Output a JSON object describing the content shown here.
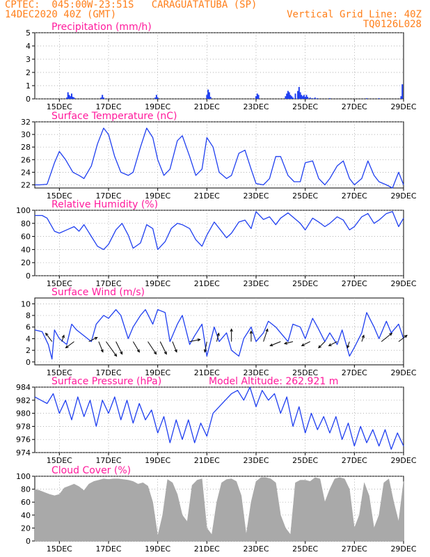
{
  "header": {
    "line1_left": "CPTEC:  045:00W-23:51S   CARAGUATATUBA (SP)",
    "line2_left": "14DEC2020 40Z (GMT)",
    "line2_right": "Vertical Grid Line: 40Z",
    "line3_right": "TQ0126L028"
  },
  "colors": {
    "header": "#ff7f1a",
    "panel_title": "#ff1a9c",
    "series": "#1f3ff0",
    "cloud_fill": "#a9a9a9",
    "grid": "#999999"
  },
  "x_axis": {
    "ticks": [
      "15DEC",
      "17DEC",
      "19DEC",
      "21DEC",
      "23DEC",
      "25DEC",
      "27DEC",
      "29DEC"
    ],
    "tick_days": [
      15,
      17,
      19,
      21,
      23,
      25,
      27,
      29
    ],
    "range_days": [
      14,
      29
    ]
  },
  "chart_data": [
    {
      "type": "bar",
      "title": "Precipitation (mm/h)",
      "ylim": [
        0,
        5
      ],
      "yticks": [
        0,
        1,
        2,
        3,
        4,
        5
      ],
      "grid": true,
      "x": [
        15.3,
        15.35,
        15.4,
        15.45,
        15.5,
        15.55,
        15.6,
        16.7,
        16.75,
        16.8,
        18.9,
        18.95,
        19.0,
        21.0,
        21.05,
        21.1,
        21.15,
        23.0,
        23.05,
        23.1,
        24.2,
        24.25,
        24.3,
        24.35,
        24.4,
        24.45,
        24.5,
        24.6,
        24.7,
        24.75,
        24.8,
        24.85,
        24.9,
        24.95,
        25.0,
        25.05,
        25.1,
        25.2,
        25.3,
        25.4,
        25.5,
        26.0,
        27.5,
        28.0,
        28.9,
        28.95
      ],
      "values": [
        0.1,
        0.5,
        0.3,
        0.2,
        0.4,
        0.15,
        0.1,
        0.1,
        0.3,
        0.1,
        0.1,
        0.3,
        0.1,
        0.3,
        0.7,
        0.5,
        0.15,
        0.2,
        0.4,
        0.3,
        0.2,
        0.4,
        0.6,
        0.5,
        0.3,
        0.2,
        0.1,
        0.4,
        0.6,
        0.9,
        0.5,
        0.3,
        0.2,
        0.3,
        0.15,
        0.3,
        0.15,
        0.1,
        0.05,
        0.1,
        0.05,
        0.05,
        0.05,
        0.05,
        0.2,
        1.1
      ]
    },
    {
      "type": "line",
      "title": "Surface Temperature (nC)",
      "ylim": [
        21.5,
        32
      ],
      "yticks": [
        22,
        24,
        26,
        28,
        30,
        32
      ],
      "grid": true,
      "x": [
        14.0,
        14.2,
        14.5,
        14.8,
        15.0,
        15.25,
        15.55,
        15.8,
        16.0,
        16.3,
        16.55,
        16.8,
        17.0,
        17.25,
        17.5,
        17.8,
        18.0,
        18.3,
        18.55,
        18.8,
        19.0,
        19.25,
        19.5,
        19.8,
        20.0,
        20.3,
        20.55,
        20.8,
        21.0,
        21.25,
        21.5,
        21.8,
        22.0,
        22.3,
        22.55,
        22.8,
        23.0,
        23.3,
        23.55,
        23.8,
        24.0,
        24.3,
        24.55,
        24.8,
        25.0,
        25.3,
        25.55,
        25.8,
        26.0,
        26.3,
        26.55,
        26.8,
        27.0,
        27.3,
        27.55,
        27.8,
        28.0,
        28.3,
        28.55,
        28.8,
        29.0
      ],
      "values": [
        22.0,
        22.0,
        22.1,
        25.5,
        27.3,
        26.0,
        24.0,
        23.5,
        23.0,
        25.0,
        28.5,
        31.0,
        30.0,
        26.5,
        24.0,
        23.5,
        24.0,
        28.0,
        31.0,
        29.5,
        26.0,
        23.5,
        24.5,
        29.0,
        29.8,
        26.5,
        23.5,
        24.5,
        29.5,
        28.0,
        24.0,
        23.0,
        23.5,
        27.0,
        27.5,
        24.5,
        22.2,
        22.0,
        23.0,
        26.5,
        26.5,
        23.5,
        22.5,
        22.5,
        25.5,
        25.8,
        23.0,
        22.0,
        23.0,
        25.0,
        25.8,
        23.0,
        22.0,
        23.0,
        25.8,
        23.5,
        22.5,
        22.0,
        21.5,
        24.0,
        22.0
      ]
    },
    {
      "type": "line",
      "title": "Relative Humidity (%)",
      "ylim": [
        0,
        100
      ],
      "yticks": [
        0,
        20,
        40,
        60,
        80,
        100
      ],
      "grid": true,
      "x": [
        14.0,
        14.3,
        14.5,
        14.8,
        15.0,
        15.3,
        15.6,
        15.8,
        16.0,
        16.3,
        16.55,
        16.8,
        17.0,
        17.3,
        17.55,
        17.8,
        18.0,
        18.3,
        18.55,
        18.8,
        19.0,
        19.3,
        19.55,
        19.8,
        20.0,
        20.3,
        20.55,
        20.8,
        21.0,
        21.3,
        21.55,
        21.8,
        22.0,
        22.3,
        22.55,
        22.8,
        23.0,
        23.3,
        23.55,
        23.8,
        24.0,
        24.3,
        24.55,
        24.8,
        25.0,
        25.3,
        25.55,
        25.8,
        26.0,
        26.3,
        26.55,
        26.8,
        27.0,
        27.3,
        27.55,
        27.8,
        28.0,
        28.3,
        28.55,
        28.8,
        29.0
      ],
      "values": [
        92,
        92,
        88,
        68,
        65,
        70,
        75,
        68,
        78,
        60,
        45,
        40,
        48,
        70,
        80,
        62,
        42,
        50,
        78,
        72,
        40,
        52,
        72,
        80,
        78,
        72,
        55,
        45,
        62,
        82,
        70,
        58,
        65,
        82,
        85,
        72,
        98,
        86,
        90,
        78,
        88,
        96,
        88,
        80,
        70,
        88,
        82,
        75,
        80,
        90,
        85,
        70,
        75,
        90,
        95,
        80,
        85,
        95,
        98,
        75,
        88
      ]
    },
    {
      "type": "line",
      "title": "Surface Wind (m/s)",
      "ylim": [
        -0.5,
        11
      ],
      "yticks": [
        0,
        2,
        4,
        6,
        8,
        10
      ],
      "grid": true,
      "x": [
        14.0,
        14.3,
        14.55,
        14.7,
        14.8,
        15.0,
        15.3,
        15.5,
        15.7,
        16.0,
        16.3,
        16.5,
        16.8,
        17.0,
        17.3,
        17.5,
        17.8,
        18.0,
        18.3,
        18.5,
        18.8,
        19.0,
        19.3,
        19.5,
        19.8,
        20.0,
        20.3,
        20.5,
        20.8,
        21.0,
        21.3,
        21.5,
        21.8,
        22.0,
        22.3,
        22.5,
        22.8,
        23.0,
        23.3,
        23.5,
        23.8,
        24.0,
        24.3,
        24.5,
        24.8,
        25.0,
        25.3,
        25.5,
        25.8,
        26.0,
        26.3,
        26.5,
        26.8,
        27.0,
        27.3,
        27.5,
        27.8,
        28.0,
        28.3,
        28.5,
        28.8,
        29.0
      ],
      "values": [
        5.5,
        5.2,
        3.0,
        0.5,
        5.5,
        4.0,
        3.0,
        6.5,
        5.5,
        4.5,
        3.5,
        6.5,
        8.0,
        7.5,
        9.0,
        8.0,
        4.0,
        6.0,
        8.0,
        9.0,
        6.5,
        9.0,
        8.5,
        3.5,
        6.5,
        8.0,
        3.0,
        4.5,
        6.5,
        1.0,
        6.0,
        3.5,
        5.0,
        2.0,
        1.0,
        4.0,
        6.0,
        3.5,
        5.0,
        7.0,
        6.0,
        5.0,
        3.5,
        6.5,
        6.0,
        4.0,
        7.5,
        6.0,
        3.5,
        5.0,
        3.0,
        5.5,
        1.0,
        2.5,
        5.0,
        8.5,
        6.0,
        4.0,
        7.0,
        5.0,
        6.5,
        4.0
      ],
      "vectors": {
        "x": [
          14.7,
          15.1,
          15.6,
          16.2,
          16.6,
          16.9,
          17.3,
          18.0,
          18.6,
          19.1,
          19.6,
          20.3,
          21.0,
          21.4,
          22.0,
          22.8,
          23.3,
          24.0,
          24.5,
          25.2,
          25.8,
          26.3,
          26.8,
          27.3,
          28.1,
          28.8
        ],
        "u": [
          -1.5,
          0.5,
          -2.0,
          2.0,
          1.0,
          2.5,
          1.5,
          1.5,
          2.0,
          1.5,
          1.0,
          2.5,
          -0.5,
          0.5,
          0,
          0,
          1.0,
          -2.5,
          -2.0,
          -2.0,
          -1.5,
          -2.0,
          -0.5,
          0.5,
          2.5,
          2.0
        ],
        "v": [
          2.0,
          1.5,
          -1.5,
          1.0,
          -2.5,
          -3.5,
          -3.0,
          -2.5,
          -3.0,
          -3.0,
          -2.5,
          0.5,
          -2.5,
          2.0,
          3.0,
          2.5,
          3.0,
          -1.0,
          -0.5,
          -1.0,
          -1.5,
          -1.0,
          -1.5,
          1.5,
          2.0,
          1.5
        ]
      }
    },
    {
      "type": "line",
      "title": "Surface Pressure (hPa)",
      "annotation": "Model Altitude: 262.921 m",
      "ylim": [
        974,
        984
      ],
      "yticks": [
        974,
        976,
        978,
        980,
        982,
        984
      ],
      "grid": true,
      "x": [
        14.0,
        14.25,
        14.5,
        14.75,
        15.0,
        15.25,
        15.5,
        15.75,
        16.0,
        16.25,
        16.5,
        16.75,
        17.0,
        17.25,
        17.5,
        17.75,
        18.0,
        18.25,
        18.5,
        18.75,
        19.0,
        19.25,
        19.5,
        19.75,
        20.0,
        20.25,
        20.5,
        20.75,
        21.0,
        21.25,
        21.5,
        21.75,
        22.0,
        22.25,
        22.5,
        22.75,
        23.0,
        23.25,
        23.5,
        23.75,
        24.0,
        24.25,
        24.5,
        24.75,
        25.0,
        25.25,
        25.5,
        25.75,
        26.0,
        26.25,
        26.5,
        26.75,
        27.0,
        27.25,
        27.5,
        27.75,
        28.0,
        28.25,
        28.5,
        28.75,
        29.0
      ],
      "values": [
        982.5,
        982.0,
        981.5,
        983.0,
        980.0,
        982.0,
        979.0,
        982.5,
        979.5,
        982.0,
        978.0,
        982.0,
        980.0,
        982.5,
        979.0,
        982.0,
        978.5,
        981.5,
        979.0,
        980.5,
        977.0,
        979.5,
        975.5,
        979.0,
        976.0,
        979.0,
        975.5,
        978.5,
        976.5,
        980.0,
        981.0,
        982.0,
        983.0,
        983.5,
        982.0,
        984.0,
        981.0,
        983.5,
        982.0,
        983.0,
        980.0,
        982.5,
        978.0,
        981.0,
        977.0,
        980.0,
        977.5,
        979.5,
        977.0,
        979.5,
        976.0,
        978.5,
        975.0,
        978.0,
        975.5,
        977.5,
        975.0,
        977.5,
        974.5,
        977.0,
        975.0
      ]
    },
    {
      "type": "area",
      "title": "Cloud Cover (%)",
      "ylim": [
        0,
        100
      ],
      "yticks": [
        0,
        20,
        40,
        60,
        80,
        100
      ],
      "grid": true,
      "x": [
        14.0,
        14.2,
        14.4,
        14.6,
        14.8,
        15.0,
        15.2,
        15.4,
        15.6,
        15.8,
        16.0,
        16.2,
        16.4,
        16.6,
        16.8,
        17.0,
        17.2,
        17.4,
        17.6,
        17.8,
        18.0,
        18.2,
        18.4,
        18.6,
        18.8,
        19.0,
        19.2,
        19.4,
        19.6,
        19.8,
        20.0,
        20.2,
        20.4,
        20.6,
        20.8,
        21.0,
        21.2,
        21.4,
        21.6,
        21.8,
        22.0,
        22.2,
        22.4,
        22.6,
        22.8,
        23.0,
        23.2,
        23.4,
        23.6,
        23.8,
        24.0,
        24.2,
        24.4,
        24.6,
        24.8,
        25.0,
        25.2,
        25.4,
        25.6,
        25.8,
        26.0,
        26.2,
        26.4,
        26.6,
        26.8,
        27.0,
        27.2,
        27.4,
        27.6,
        27.8,
        28.0,
        28.2,
        28.4,
        28.6,
        28.8,
        29.0
      ],
      "values": [
        80,
        78,
        75,
        72,
        70,
        72,
        82,
        85,
        88,
        84,
        78,
        88,
        92,
        94,
        96,
        95,
        96,
        96,
        95,
        94,
        92,
        88,
        90,
        85,
        60,
        8,
        40,
        95,
        90,
        72,
        40,
        30,
        86,
        94,
        96,
        20,
        10,
        60,
        90,
        95,
        96,
        92,
        70,
        10,
        60,
        92,
        98,
        98,
        96,
        90,
        40,
        20,
        10,
        90,
        94,
        94,
        92,
        98,
        96,
        60,
        80,
        96,
        98,
        96,
        80,
        20,
        40,
        90,
        70,
        20,
        40,
        90,
        96,
        60,
        30,
        92
      ]
    }
  ]
}
